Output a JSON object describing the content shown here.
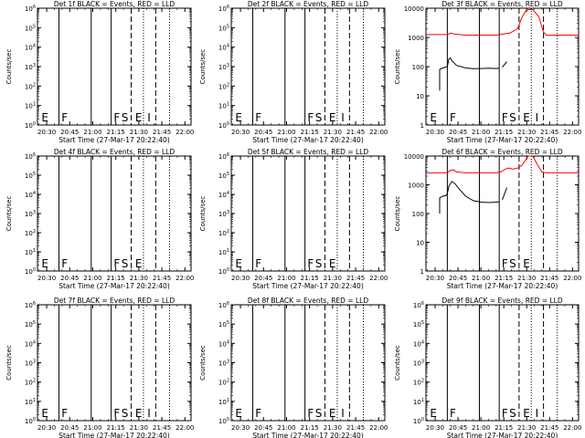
{
  "figure": {
    "xlabel": "Start Time (27-Mar-17 20:22:40)",
    "ylabel": "Counts/sec"
  },
  "chart_data": [
    {
      "type": "line",
      "title": "Det 1f BLACK = Events, RED = LLD",
      "xlabel": "Start Time (27-Mar-17 20:22:40)",
      "ylabel": "Counts/sec",
      "xlim": [
        "20:24",
        "22:04"
      ],
      "x_ticks": [
        "20:30",
        "20:45",
        "21:00",
        "21:15",
        "21:30",
        "21:45",
        "22:00"
      ],
      "y_scale": "log",
      "ylim": [
        1,
        1000000
      ],
      "y_ticks": [
        "10^0",
        "10^1",
        "10^2",
        "10^3",
        "10^4",
        "10^5",
        "10^6"
      ],
      "solid_lines_at": [
        "20:38",
        "20:59",
        "21:12"
      ],
      "dashed_lines_at": [
        "21:25",
        "21:41"
      ],
      "dotted_lines_at": [
        "21:33",
        "21:50"
      ],
      "markers": [
        {
          "label": "E",
          "at": "20:26"
        },
        {
          "label": "F",
          "at": "20:39"
        },
        {
          "label": "F",
          "at": "21:13"
        },
        {
          "label": "S",
          "at": "21:18"
        },
        {
          "label": "E",
          "at": "21:27"
        },
        {
          "label": "I",
          "at": "21:35"
        }
      ],
      "series": []
    },
    {
      "type": "line",
      "title": "Det 2f BLACK = Events, RED = LLD",
      "xlabel": "Start Time (27-Mar-17 20:22:40)",
      "ylabel": "Counts/sec",
      "xlim": [
        "20:24",
        "22:04"
      ],
      "x_ticks": [
        "20:30",
        "20:45",
        "21:00",
        "21:15",
        "21:30",
        "21:45",
        "22:00"
      ],
      "y_scale": "log",
      "ylim": [
        1,
        1000000
      ],
      "y_ticks": [
        "10^0",
        "10^1",
        "10^2",
        "10^3",
        "10^4",
        "10^5",
        "10^6"
      ],
      "solid_lines_at": [
        "20:38",
        "20:59",
        "21:12"
      ],
      "dashed_lines_at": [
        "21:25",
        "21:41"
      ],
      "dotted_lines_at": [
        "21:33",
        "21:50"
      ],
      "markers": [
        {
          "label": "E",
          "at": "20:26"
        },
        {
          "label": "F",
          "at": "20:39"
        },
        {
          "label": "F",
          "at": "21:13"
        },
        {
          "label": "S",
          "at": "21:18"
        },
        {
          "label": "E",
          "at": "21:27"
        },
        {
          "label": "I",
          "at": "21:35"
        }
      ],
      "series": []
    },
    {
      "type": "line",
      "title": "Det 3f BLACK = Events, RED = LLD",
      "xlabel": "Start Time (27-Mar-17 20:22:40)",
      "ylabel": "Counts/sec",
      "xlim": [
        "20:24",
        "22:04"
      ],
      "x_ticks": [
        "20:30",
        "20:45",
        "21:00",
        "21:15",
        "21:30",
        "21:45",
        "22:00"
      ],
      "y_scale": "log",
      "ylim": [
        1,
        10000
      ],
      "y_ticks": [
        "1",
        "10",
        "100",
        "1000",
        "10000"
      ],
      "solid_lines_at": [
        "20:38",
        "20:59",
        "21:12"
      ],
      "dashed_lines_at": [
        "21:25",
        "21:41"
      ],
      "dotted_lines_at": [
        "21:33",
        "21:50"
      ],
      "markers": [
        {
          "label": "E",
          "at": "20:26"
        },
        {
          "label": "F",
          "at": "20:39"
        },
        {
          "label": "F",
          "at": "21:13"
        },
        {
          "label": "S",
          "at": "21:18"
        },
        {
          "label": "E",
          "at": "21:27"
        },
        {
          "label": "I",
          "at": "21:35"
        }
      ],
      "series": [
        {
          "color": "#ff0000",
          "segments": [
            [
              [
                "20:24",
                1250
              ],
              [
                "20:38",
                1250
              ],
              [
                "20:40",
                1400
              ],
              [
                "20:43",
                1300
              ],
              [
                "20:50",
                1200
              ],
              [
                "21:10",
                1200
              ],
              [
                "21:14",
                1300
              ],
              [
                "21:19",
                1400
              ],
              [
                "21:24",
                2000
              ],
              [
                "21:27",
                5000
              ],
              [
                "21:30",
                9000
              ],
              [
                "21:34",
                9000
              ],
              [
                "21:38",
                5000
              ],
              [
                "21:41",
                1500
              ],
              [
                "21:43",
                1200
              ],
              [
                "22:04",
                1200
              ]
            ]
          ]
        },
        {
          "color": "#000000",
          "segments": [
            [
              [
                "20:33",
                15
              ],
              [
                "20:33",
                80
              ],
              [
                "20:35",
                90
              ],
              [
                "20:38",
                100
              ],
              [
                "20:39",
                180
              ],
              [
                "20:40",
                200
              ],
              [
                "20:41",
                160
              ],
              [
                "20:44",
                110
              ],
              [
                "20:50",
                90
              ],
              [
                "20:55",
                85
              ],
              [
                "21:00",
                86
              ],
              [
                "21:05",
                88
              ],
              [
                "21:10",
                86
              ],
              [
                "21:12",
                88
              ]
            ],
            [
              [
                "21:14",
                95
              ],
              [
                "21:17",
                150
              ]
            ]
          ]
        }
      ]
    },
    {
      "type": "line",
      "title": "Det 4f BLACK = Events, RED = LLD",
      "xlabel": "Start Time (27-Mar-17 20:22:40)",
      "ylabel": "Counts/sec",
      "xlim": [
        "20:24",
        "22:04"
      ],
      "x_ticks": [
        "20:30",
        "20:45",
        "21:00",
        "21:15",
        "21:30",
        "21:45",
        "22:00"
      ],
      "y_scale": "log",
      "ylim": [
        1,
        1000000
      ],
      "y_ticks": [
        "10^0",
        "10^1",
        "10^2",
        "10^3",
        "10^4",
        "10^5",
        "10^6"
      ],
      "solid_lines_at": [
        "20:38",
        "20:59",
        "21:12"
      ],
      "dashed_lines_at": [
        "21:25",
        "21:41"
      ],
      "dotted_lines_at": [
        "21:33",
        "21:50"
      ],
      "markers": [
        {
          "label": "E",
          "at": "20:26"
        },
        {
          "label": "F",
          "at": "20:39"
        },
        {
          "label": "F",
          "at": "21:13"
        },
        {
          "label": "S",
          "at": "21:18"
        },
        {
          "label": "E",
          "at": "21:27"
        }
      ],
      "series": []
    },
    {
      "type": "line",
      "title": "Det 5f BLACK = Events, RED = LLD",
      "xlabel": "Start Time (27-Mar-17 20:22:40)",
      "ylabel": "Counts/sec",
      "xlim": [
        "20:24",
        "22:04"
      ],
      "x_ticks": [
        "20:30",
        "20:45",
        "21:00",
        "21:15",
        "21:30",
        "21:45",
        "22:00"
      ],
      "y_scale": "log",
      "ylim": [
        1,
        1000000
      ],
      "y_ticks": [
        "10^0",
        "10^1",
        "10^2",
        "10^3",
        "10^4",
        "10^5",
        "10^6"
      ],
      "solid_lines_at": [
        "20:38",
        "20:59",
        "21:12"
      ],
      "dashed_lines_at": [
        "21:25",
        "21:41"
      ],
      "dotted_lines_at": [
        "21:33",
        "21:50"
      ],
      "markers": [
        {
          "label": "E",
          "at": "20:26"
        },
        {
          "label": "F",
          "at": "20:39"
        },
        {
          "label": "F",
          "at": "21:13"
        },
        {
          "label": "S",
          "at": "21:18"
        },
        {
          "label": "E",
          "at": "21:27"
        }
      ],
      "series": []
    },
    {
      "type": "line",
      "title": "Det 6f BLACK = Events, RED = LLD",
      "xlabel": "Start Time (27-Mar-17 20:22:40)",
      "ylabel": "Counts/sec",
      "xlim": [
        "20:24",
        "22:04"
      ],
      "x_ticks": [
        "20:30",
        "20:45",
        "21:00",
        "21:15",
        "21:30",
        "21:45",
        "22:00"
      ],
      "y_scale": "log",
      "ylim": [
        1,
        10000
      ],
      "y_ticks": [
        "1",
        "10",
        "100",
        "1000",
        "10000"
      ],
      "solid_lines_at": [
        "20:38",
        "20:59",
        "21:12"
      ],
      "dashed_lines_at": [
        "21:25",
        "21:41"
      ],
      "dotted_lines_at": [
        "21:33",
        "21:50"
      ],
      "markers": [
        {
          "label": "F",
          "at": "21:13"
        },
        {
          "label": "S",
          "at": "21:18"
        },
        {
          "label": "E",
          "at": "21:27"
        }
      ],
      "series": [
        {
          "color": "#ff0000",
          "segments": [
            [
              [
                "20:24",
                2600
              ],
              [
                "20:38",
                2600
              ],
              [
                "20:40",
                3200
              ],
              [
                "20:42",
                3300
              ],
              [
                "20:44",
                2800
              ],
              [
                "20:50",
                2600
              ],
              [
                "21:10",
                2600
              ],
              [
                "21:13",
                2800
              ],
              [
                "21:16",
                3500
              ],
              [
                "21:18",
                3800
              ],
              [
                "21:21",
                3500
              ],
              [
                "21:24",
                3800
              ],
              [
                "21:27",
                4800
              ],
              [
                "21:31",
                10000
              ],
              [
                "21:34",
                10000
              ],
              [
                "21:37",
                5000
              ],
              [
                "21:40",
                2800
              ],
              [
                "21:43",
                2600
              ],
              [
                "22:04",
                2600
              ]
            ]
          ]
        },
        {
          "color": "#000000",
          "segments": [
            [
              [
                "20:33",
                100
              ],
              [
                "20:33",
                350
              ],
              [
                "20:35",
                400
              ],
              [
                "20:37",
                420
              ],
              [
                "20:38",
                500
              ],
              [
                "20:39",
                900
              ],
              [
                "20:41",
                1300
              ],
              [
                "20:43",
                1100
              ],
              [
                "20:46",
                700
              ],
              [
                "20:50",
                400
              ],
              [
                "20:55",
                280
              ],
              [
                "21:00",
                250
              ],
              [
                "21:05",
                240
              ],
              [
                "21:10",
                250
              ],
              [
                "21:12",
                255
              ]
            ],
            [
              [
                "21:14",
                300
              ],
              [
                "21:17",
                800
              ]
            ]
          ]
        }
      ]
    },
    {
      "type": "line",
      "title": "Det 7f BLACK = Events, RED = LLD",
      "xlabel": "Start Time (27-Mar-17 20:22:40)",
      "ylabel": "Counts/sec",
      "xlim": [
        "20:24",
        "22:04"
      ],
      "x_ticks": [
        "20:30",
        "20:45",
        "21:00",
        "21:15",
        "21:30",
        "21:45",
        "22:00"
      ],
      "y_scale": "log",
      "ylim": [
        1,
        1000000
      ],
      "y_ticks": [
        "10^0",
        "10^1",
        "10^2",
        "10^3",
        "10^4",
        "10^5",
        "10^6"
      ],
      "solid_lines_at": [
        "20:38",
        "20:59",
        "21:12"
      ],
      "dashed_lines_at": [
        "21:25",
        "21:41"
      ],
      "dotted_lines_at": [
        "21:33",
        "21:50"
      ],
      "markers": [
        {
          "label": "E",
          "at": "20:26"
        },
        {
          "label": "F",
          "at": "20:39"
        },
        {
          "label": "F",
          "at": "21:13"
        },
        {
          "label": "S",
          "at": "21:18"
        },
        {
          "label": "E",
          "at": "21:27"
        },
        {
          "label": "I",
          "at": "21:35"
        }
      ],
      "series": []
    },
    {
      "type": "line",
      "title": "Det 8f BLACK = Events, RED = LLD",
      "xlabel": "Start Time (27-Mar-17 20:22:40)",
      "ylabel": "Counts/sec",
      "xlim": [
        "20:24",
        "22:04"
      ],
      "x_ticks": [
        "20:30",
        "20:45",
        "21:00",
        "21:15",
        "21:30",
        "21:45",
        "22:00"
      ],
      "y_scale": "log",
      "ylim": [
        1,
        1000000
      ],
      "y_ticks": [
        "10^0",
        "10^1",
        "10^2",
        "10^3",
        "10^4",
        "10^5",
        "10^6"
      ],
      "solid_lines_at": [
        "20:38",
        "20:59",
        "21:12"
      ],
      "dashed_lines_at": [
        "21:25",
        "21:41"
      ],
      "dotted_lines_at": [
        "21:33",
        "21:50"
      ],
      "markers": [
        {
          "label": "E",
          "at": "20:26"
        },
        {
          "label": "F",
          "at": "20:39"
        },
        {
          "label": "F",
          "at": "21:13"
        },
        {
          "label": "S",
          "at": "21:18"
        },
        {
          "label": "E",
          "at": "21:27"
        },
        {
          "label": "I",
          "at": "21:35"
        }
      ],
      "series": []
    },
    {
      "type": "line",
      "title": "Det 9f BLACK = Events, RED = LLD",
      "xlabel": "Start Time (27-Mar-17 20:22:40)",
      "ylabel": "Counts/sec",
      "xlim": [
        "20:24",
        "22:04"
      ],
      "x_ticks": [
        "20:30",
        "20:45",
        "21:00",
        "21:15",
        "21:30",
        "21:45",
        "22:00"
      ],
      "y_scale": "log",
      "ylim": [
        1,
        1000000
      ],
      "y_ticks": [
        "10^0",
        "10^1",
        "10^2",
        "10^3",
        "10^4",
        "10^5",
        "10^6"
      ],
      "solid_lines_at": [
        "20:38",
        "20:59",
        "21:12"
      ],
      "dashed_lines_at": [
        "21:25",
        "21:41"
      ],
      "dotted_lines_at": [
        "21:33",
        "21:50"
      ],
      "markers": [
        {
          "label": "E",
          "at": "20:26"
        },
        {
          "label": "F",
          "at": "20:39"
        },
        {
          "label": "F",
          "at": "21:13"
        },
        {
          "label": "S",
          "at": "21:18"
        },
        {
          "label": "E",
          "at": "21:27"
        },
        {
          "label": "I",
          "at": "21:35"
        }
      ],
      "series": []
    }
  ]
}
